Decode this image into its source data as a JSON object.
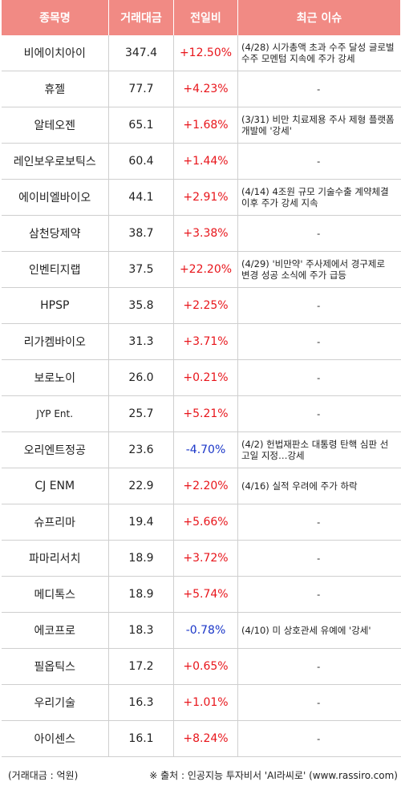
{
  "header": {
    "name": "종목명",
    "volume": "거래대금",
    "change": "전일비",
    "issue": "최근 이슈"
  },
  "rows": [
    {
      "name": "비에이치아이",
      "volume": "347.4",
      "change": "+12.50%",
      "dir": "up",
      "issue": "(4/28) 시가총액 초과 수주 달성 글로벌 수주 모멘텀 지속에 주가 강세"
    },
    {
      "name": "휴젤",
      "volume": "77.7",
      "change": "+4.23%",
      "dir": "up",
      "issue": "-"
    },
    {
      "name": "알테오젠",
      "volume": "65.1",
      "change": "+1.68%",
      "dir": "up",
      "issue": "(3/31) 비만 치료제용 주사 제형 플랫폼 개발에 '강세'"
    },
    {
      "name": "레인보우로보틱스",
      "volume": "60.4",
      "change": "+1.44%",
      "dir": "up",
      "issue": "-"
    },
    {
      "name": "에이비엘바이오",
      "volume": "44.1",
      "change": "+2.91%",
      "dir": "up",
      "issue": "(4/14) 4조원 규모 기술수출 계약체결이후 주가 강세 지속"
    },
    {
      "name": "삼천당제약",
      "volume": "38.7",
      "change": "+3.38%",
      "dir": "up",
      "issue": "-"
    },
    {
      "name": "인벤티지랩",
      "volume": "37.5",
      "change": "+22.20%",
      "dir": "up",
      "issue": "(4/29) '비만약' 주사제에서 경구제로 변경 성공 소식에 주가 급등"
    },
    {
      "name": "HPSP",
      "volume": "35.8",
      "change": "+2.25%",
      "dir": "up",
      "issue": "-"
    },
    {
      "name": "리가켐바이오",
      "volume": "31.3",
      "change": "+3.71%",
      "dir": "up",
      "issue": "-"
    },
    {
      "name": "보로노이",
      "volume": "26.0",
      "change": "+0.21%",
      "dir": "up",
      "issue": "-"
    },
    {
      "name": "JYP Ent.",
      "volume": "25.7",
      "change": "+5.21%",
      "dir": "up",
      "issue": "-"
    },
    {
      "name": "오리엔트정공",
      "volume": "23.6",
      "change": "-4.70%",
      "dir": "down",
      "issue": "(4/2) 헌법재판소 대통령 탄핵 심판 선고일 지정…강세"
    },
    {
      "name": "CJ ENM",
      "volume": "22.9",
      "change": "+2.20%",
      "dir": "up",
      "issue": "(4/16) 실적 우려에 주가 하락"
    },
    {
      "name": "슈프리마",
      "volume": "19.4",
      "change": "+5.66%",
      "dir": "up",
      "issue": "-"
    },
    {
      "name": "파마리서치",
      "volume": "18.9",
      "change": "+3.72%",
      "dir": "up",
      "issue": "-"
    },
    {
      "name": "메디톡스",
      "volume": "18.9",
      "change": "+5.74%",
      "dir": "up",
      "issue": "-"
    },
    {
      "name": "에코프로",
      "volume": "18.3",
      "change": "-0.78%",
      "dir": "down",
      "issue": "(4/10) 미 상호관세 유예에 '강세'"
    },
    {
      "name": "필옵틱스",
      "volume": "17.2",
      "change": "+0.65%",
      "dir": "up",
      "issue": "-"
    },
    {
      "name": "우리기술",
      "volume": "16.3",
      "change": "+1.01%",
      "dir": "up",
      "issue": "-"
    },
    {
      "name": "아이센스",
      "volume": "16.1",
      "change": "+8.24%",
      "dir": "up",
      "issue": "-"
    }
  ],
  "footer": {
    "unit": "(거래대금 : 억원)",
    "source": "※ 출처 : 인공지능 투자비서 'AI라씨로' (www.rassiro.com)"
  },
  "colors": {
    "header_bg": "#f18a84",
    "up": "#e8151b",
    "down": "#1a36c8"
  }
}
